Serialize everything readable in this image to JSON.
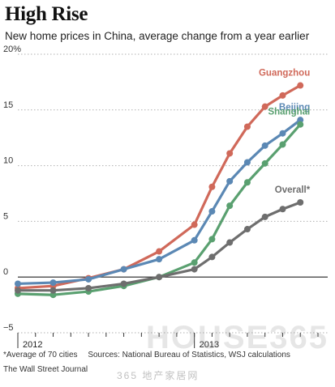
{
  "header": {
    "title": "High Rise",
    "subtitle": "New home prices in China, average change from a year earlier"
  },
  "footer": {
    "note": "*Average of 70 cities",
    "sources": "Sources: National Bureau of Statistics, WSJ calculations",
    "credit": "The Wall Street Journal"
  },
  "watermark": {
    "main": "HOUSE365",
    "sub": "365 地产家居网"
  },
  "colors": {
    "Guangzhou": "#d0695a",
    "Beijing": "#5b88b4",
    "Shanghai": "#5aa070",
    "Overall*": "#6e6e6e",
    "grid": "#b0b0b0",
    "zero_line": "#222222"
  },
  "chart_data": {
    "type": "line",
    "x": [
      "2012-03",
      "2012-04",
      "2012-05",
      "2012-06",
      "2012-07",
      "2012-08",
      "2012-09",
      "2012-10",
      "2012-11",
      "2012-12",
      "2013-01",
      "2013-02",
      "2013-03",
      "2013-04",
      "2013-05",
      "2013-06",
      "2013-07",
      "2013-08"
    ],
    "x_tick_labels": [
      {
        "label": "2012",
        "x": "2012-03"
      },
      {
        "label": "2013",
        "x": "2013-01"
      }
    ],
    "y_ticks": [
      -5,
      0,
      5,
      10,
      15,
      20
    ],
    "y_tick_labels": [
      "−5",
      "0",
      "5",
      "10",
      "15",
      "20%"
    ],
    "ylim": [
      -5,
      20
    ],
    "grid": "horizontal dotted",
    "series": [
      {
        "name": "Guangzhou",
        "x": [
          "2012-03",
          "2012-05",
          "2012-07",
          "2012-09",
          "2012-11",
          "2013-01",
          "2013-02",
          "2013-03",
          "2013-04",
          "2013-05",
          "2013-06",
          "2013-07",
          "2013-08"
        ],
        "values": [
          -1.0,
          -0.8,
          -0.1,
          0.7,
          2.3,
          4.7,
          8.1,
          11.1,
          13.5,
          15.3,
          16.3,
          17.2,
          null
        ]
      },
      {
        "name": "Beijing",
        "x": [
          "2012-03",
          "2012-05",
          "2012-07",
          "2012-09",
          "2012-11",
          "2013-01",
          "2013-02",
          "2013-03",
          "2013-04",
          "2013-05",
          "2013-06",
          "2013-07",
          "2013-08"
        ],
        "values": [
          -0.6,
          -0.5,
          -0.2,
          0.7,
          1.6,
          3.3,
          5.9,
          8.6,
          10.3,
          11.8,
          12.9,
          14.1,
          null
        ]
      },
      {
        "name": "Shanghai",
        "x": [
          "2012-03",
          "2012-05",
          "2012-07",
          "2012-09",
          "2012-11",
          "2013-01",
          "2013-02",
          "2013-03",
          "2013-04",
          "2013-05",
          "2013-06",
          "2013-07",
          "2013-08"
        ],
        "values": [
          -1.5,
          -1.6,
          -1.3,
          -0.8,
          0.0,
          1.3,
          3.4,
          6.4,
          8.5,
          10.2,
          11.9,
          13.7,
          null
        ]
      },
      {
        "name": "Overall*",
        "x": [
          "2012-03",
          "2012-05",
          "2012-07",
          "2012-09",
          "2012-11",
          "2013-01",
          "2013-02",
          "2013-03",
          "2013-04",
          "2013-05",
          "2013-06",
          "2013-07",
          "2013-08"
        ],
        "values": [
          -1.2,
          -1.2,
          -1.0,
          -0.6,
          0.0,
          0.7,
          1.8,
          3.1,
          4.3,
          5.4,
          6.1,
          6.7,
          null
        ]
      }
    ]
  }
}
